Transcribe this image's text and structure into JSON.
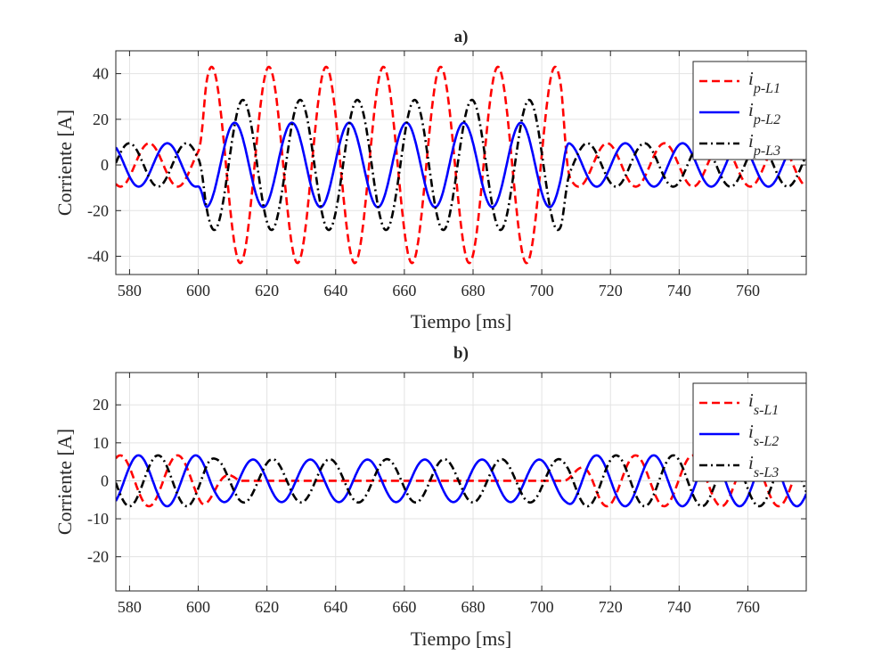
{
  "chart_data": [
    {
      "type": "line",
      "title": "a)",
      "xlabel": "Tiempo [ms]",
      "ylabel": "Corriente [A]",
      "xlim": [
        576,
        777
      ],
      "ylim": [
        -48,
        50
      ],
      "xticks": [
        580,
        600,
        620,
        640,
        660,
        680,
        700,
        720,
        740,
        760
      ],
      "yticks": [
        -40,
        -20,
        0,
        20,
        40
      ],
      "ytick_labels": [
        "-40",
        "-20",
        "0",
        "20",
        "40"
      ],
      "grid": true,
      "legend_position": "top-right",
      "frequency_hz": 60,
      "series": [
        {
          "name": "i",
          "sub": "p-L1",
          "color": "#ff0000",
          "style": "dashed",
          "segments": [
            {
              "t0": 576,
              "t1": 601,
              "amp": 9.5,
              "peak_ms": 585.7
            },
            {
              "t0": 601,
              "t1": 707,
              "amp": 43,
              "peak_ms": 603.9
            },
            {
              "t0": 707,
              "t1": 777,
              "amp": 9.5,
              "peak_ms": 585.7
            }
          ]
        },
        {
          "name": "i",
          "sub": "p-L2",
          "color": "#0000ff",
          "style": "solid",
          "segments": [
            {
              "t0": 576,
              "t1": 601,
              "amp": 9.5,
              "peak_ms": 591.0
            },
            {
              "t0": 601,
              "t1": 707,
              "amp": 18.5,
              "peak_ms": 610.6
            },
            {
              "t0": 707,
              "t1": 777,
              "amp": 9.5,
              "peak_ms": 591.0
            }
          ]
        },
        {
          "name": "i",
          "sub": "p-L3",
          "color": "#000000",
          "style": "dashdot",
          "segments": [
            {
              "t0": 576,
              "t1": 601,
              "amp": 9.5,
              "peak_ms": 596.6
            },
            {
              "t0": 601,
              "t1": 707,
              "amp": 28.5,
              "peak_ms": 613.0
            },
            {
              "t0": 707,
              "t1": 777,
              "amp": 9.5,
              "peak_ms": 596.6
            }
          ]
        }
      ]
    },
    {
      "type": "line",
      "title": "b)",
      "xlabel": "Tiempo [ms]",
      "ylabel": "Corriente [A]",
      "xlim": [
        576,
        777
      ],
      "ylim": [
        -29,
        28.5
      ],
      "xticks": [
        580,
        600,
        620,
        640,
        660,
        680,
        700,
        720,
        740,
        760
      ],
      "yticks": [
        -20,
        -10,
        0,
        10,
        20
      ],
      "ytick_labels": [
        "-20",
        "-10",
        "0",
        "10",
        "20"
      ],
      "grid": true,
      "legend_position": "top-right",
      "frequency_hz": 60,
      "series": [
        {
          "name": "i",
          "sub": "s-L1",
          "color": "#ff0000",
          "style": "dashed",
          "segments": [
            {
              "t0": 576,
              "t1": 601,
              "amp": 6.7,
              "peak_ms": 577.3
            },
            {
              "t0": 601,
              "t1": 612,
              "amp": 6.7,
              "amp_end": 0,
              "peak_ms": 577.3
            },
            {
              "t0": 612,
              "t1": 706,
              "amp": 0,
              "peak_ms": 577.3
            },
            {
              "t0": 706,
              "t1": 716,
              "amp": 0,
              "amp_end": 6.7,
              "peak_ms": 577.3
            },
            {
              "t0": 716,
              "t1": 777,
              "amp": 6.7,
              "peak_ms": 577.3
            }
          ]
        },
        {
          "name": "i",
          "sub": "s-L2",
          "color": "#0000ff",
          "style": "solid",
          "segments": [
            {
              "t0": 576,
              "t1": 604,
              "amp": 6.7,
              "peak_ms": 582.6
            },
            {
              "t0": 604,
              "t1": 708,
              "amp": 5.6,
              "peak_ms": 582.6
            },
            {
              "t0": 708,
              "t1": 777,
              "amp": 6.7,
              "peak_ms": 582.6
            }
          ]
        },
        {
          "name": "i",
          "sub": "s-L3",
          "color": "#000000",
          "style": "dashdot",
          "segments": [
            {
              "t0": 576,
              "t1": 604,
              "amp": 6.7,
              "peak_ms": 588.3
            },
            {
              "t0": 604,
              "t1": 708,
              "amp": 5.7,
              "peak_ms": 588.3
            },
            {
              "t0": 708,
              "t1": 777,
              "amp": 6.7,
              "peak_ms": 588.3
            }
          ]
        }
      ]
    }
  ]
}
